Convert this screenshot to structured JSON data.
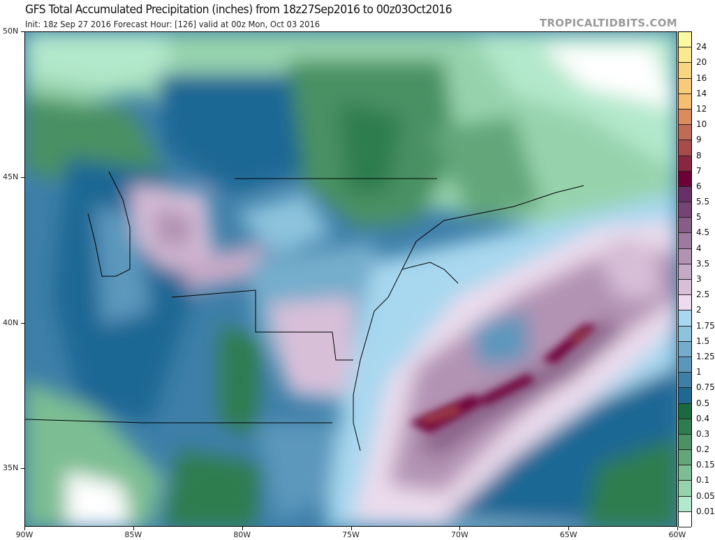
{
  "header": {
    "title": "GFS Total Accumulated Precipitation (inches) from 18z27Sep2016 to 00z03Oct2016",
    "subtitle": "Init: 18z Sep 27 2016   Forecast Hour: [126]   valid at 00z Mon, Oct 03 2016",
    "watermark": "TROPICALTIDBITS.COM"
  },
  "map": {
    "lat_labels": [
      "50N",
      "45N",
      "40N",
      "35N"
    ],
    "lon_labels": [
      "90W",
      "85W",
      "80W",
      "75W",
      "70W",
      "65W",
      "60W"
    ],
    "lat_range": [
      33,
      50
    ],
    "lon_range": [
      -90,
      -60
    ]
  },
  "colorbar": {
    "units": "inches",
    "levels": [
      "0.01",
      "0.05",
      "0.1",
      "0.15",
      "0.2",
      "0.3",
      "0.4",
      "0.5",
      "0.75",
      "1",
      "1.25",
      "1.5",
      "1.75",
      "2",
      "2.5",
      "3",
      "3.5",
      "4",
      "4.5",
      "5",
      "5.5",
      "6",
      "7",
      "8",
      "9",
      "10",
      "12",
      "14",
      "16",
      "20",
      "24"
    ],
    "colors": [
      "#ffffff",
      "#b2e8cb",
      "#96d3ad",
      "#7cbd93",
      "#62a679",
      "#4a9163",
      "#2e7d4f",
      "#196a3e",
      "#1f6894",
      "#3e7fa8",
      "#5b97bc",
      "#74adcc",
      "#8dc3dd",
      "#a8d8ef",
      "#ecdced",
      "#d8bfd8",
      "#c5a9c6",
      "#b293b3",
      "#9d7aa0",
      "#865d87",
      "#754474",
      "#673069",
      "#6e0038",
      "#8a2642",
      "#a74c4a",
      "#c06b55",
      "#dc8c5c",
      "#f5bf6f",
      "#f8cb7a",
      "#fad57f",
      "#fce98f",
      "#fdf9a0"
    ]
  }
}
